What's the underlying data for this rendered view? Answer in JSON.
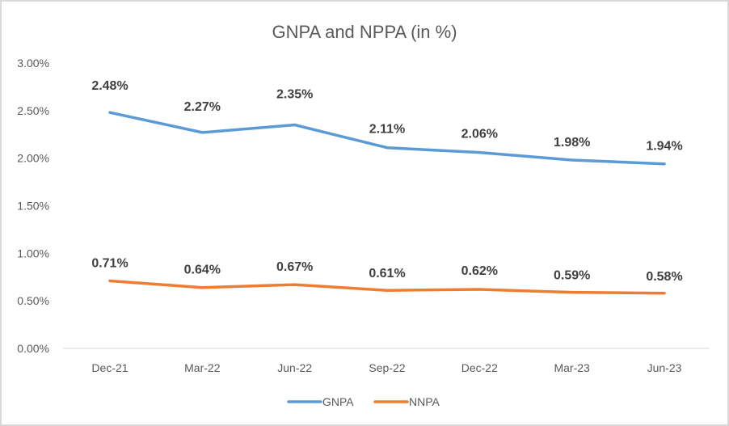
{
  "chart_data": {
    "type": "line",
    "title": "GNPA and NPPA (in %)",
    "xlabel": "",
    "ylabel": "",
    "categories": [
      "Dec-21",
      "Mar-22",
      "Jun-22",
      "Sep-22",
      "Dec-22",
      "Mar-23",
      "Jun-23"
    ],
    "ylim": [
      0,
      3
    ],
    "yticks": [
      0,
      0.5,
      1.0,
      1.5,
      2.0,
      2.5,
      3.0
    ],
    "ytick_labels": [
      "0.00%",
      "0.50%",
      "1.00%",
      "1.50%",
      "2.00%",
      "2.50%",
      "3.00%"
    ],
    "grid": false,
    "legend_position": "bottom",
    "series": [
      {
        "name": "GNPA",
        "color": "#5b9bd5",
        "values": [
          2.48,
          2.27,
          2.35,
          2.11,
          2.06,
          1.98,
          1.94
        ],
        "labels": [
          "2.48%",
          "2.27%",
          "2.35%",
          "2.11%",
          "2.06%",
          "1.98%",
          "1.94%"
        ]
      },
      {
        "name": "NNPA",
        "color": "#ed7d31",
        "values": [
          0.71,
          0.64,
          0.67,
          0.61,
          0.62,
          0.59,
          0.58
        ],
        "labels": [
          "0.71%",
          "0.64%",
          "0.67%",
          "0.61%",
          "0.62%",
          "0.59%",
          "0.58%"
        ]
      }
    ]
  }
}
